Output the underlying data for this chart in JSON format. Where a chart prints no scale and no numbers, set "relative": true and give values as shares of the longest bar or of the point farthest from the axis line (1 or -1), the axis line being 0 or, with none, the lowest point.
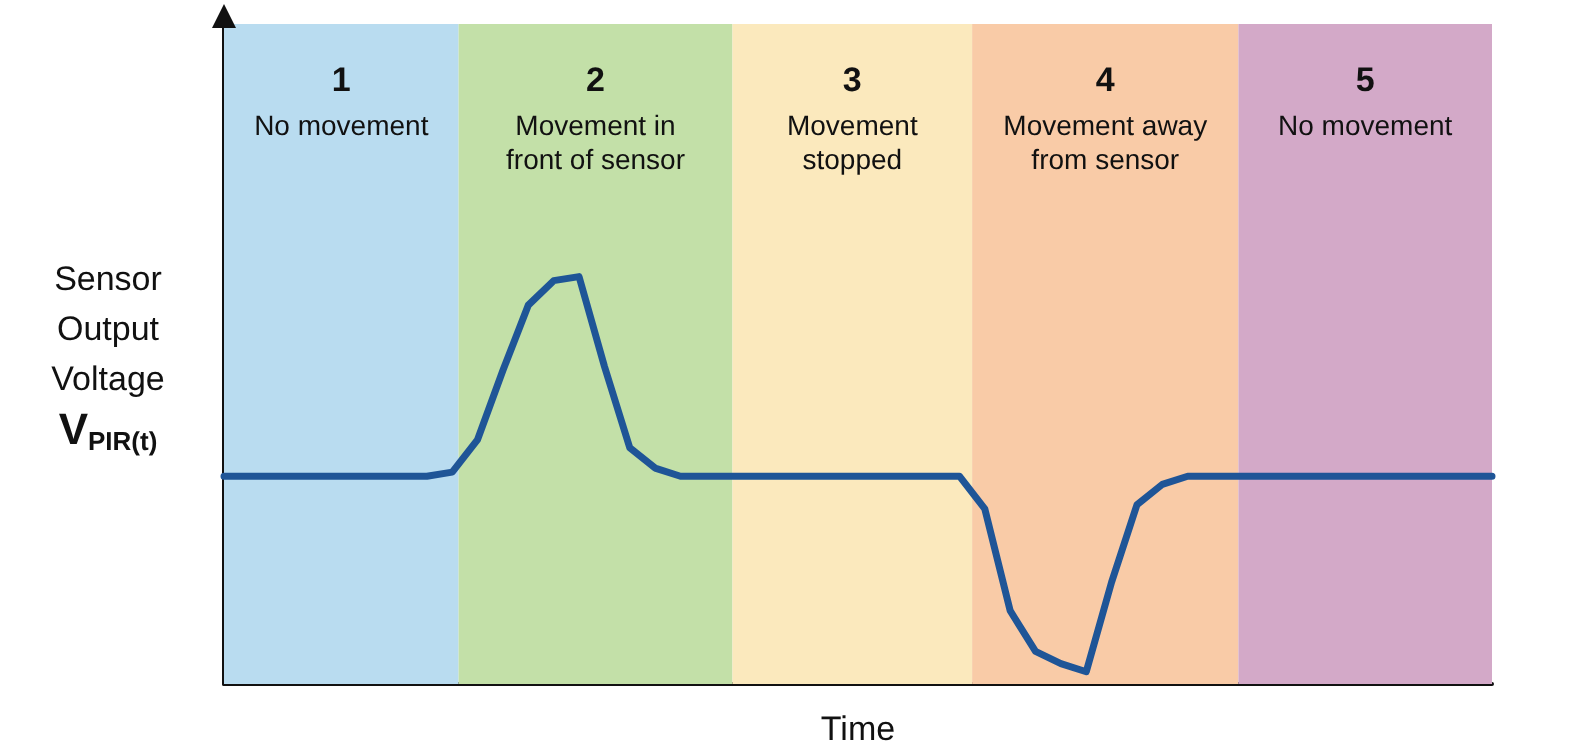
{
  "chart_data": {
    "type": "line",
    "relative": true,
    "xlabel": "Time",
    "ylabel": "Sensor Output Voltage V$_{PIR(t)}$",
    "categories": [
      null,
      null,
      null,
      null,
      null,
      null,
      null,
      null,
      null,
      null,
      null,
      null,
      null,
      null,
      null,
      null,
      null,
      null,
      null,
      null,
      null,
      null,
      null,
      null,
      null,
      null,
      null,
      null,
      null,
      null,
      null,
      null,
      null,
      null,
      null,
      null,
      null,
      null,
      null,
      null,
      null,
      null,
      null,
      null,
      null,
      null,
      null,
      null,
      null,
      null,
      null
    ],
    "tick_labels": false,
    "series": [
      {
        "color": "#1f5597",
        "values": [
          0.51,
          0.51,
          0.51,
          0.51,
          0.51,
          0.51,
          0.51,
          0.51,
          0.51,
          0.52,
          0.6,
          0.77,
          0.93,
          0.99,
          1.0,
          0.78,
          0.58,
          0.53,
          0.51,
          0.51,
          0.51,
          0.51,
          0.51,
          0.51,
          0.51,
          0.51,
          0.51,
          0.51,
          0.51,
          0.51,
          0.43,
          0.18,
          0.08,
          0.05,
          0.03,
          0.25,
          0.44,
          0.49,
          0.51,
          0.51,
          0.51,
          0.51,
          0.51,
          0.51,
          0.51,
          0.51,
          0.51,
          0.51,
          0.51,
          0.51,
          0.51
        ]
      }
    ],
    "annotations": [
      "1 No movement",
      "2 Movement in front of sensor",
      "3 Movement stopped",
      "4 Movement away from sensor",
      "5 No movement"
    ],
    "grid": false,
    "marker": "none",
    "line_style": "solid"
  }
}
